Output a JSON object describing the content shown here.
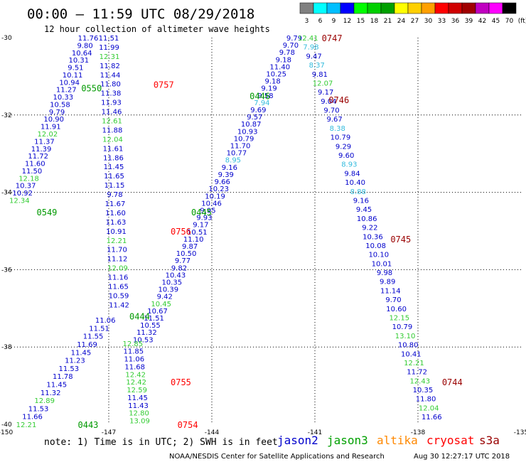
{
  "header": {
    "title": "00:00 – 11:59 UTC 08/29/2018",
    "subtitle": "12 hour collection of altimeter wave heights"
  },
  "color_scale": {
    "labels": [
      "3",
      "6",
      "9",
      "12",
      "15",
      "18",
      "21",
      "24",
      "27",
      "30",
      "33",
      "36",
      "39",
      "42",
      "45",
      "70",
      "(ft)"
    ],
    "colors": [
      "#808080",
      "#00ffff",
      "#00bfff",
      "#0000ff",
      "#00ff00",
      "#00d000",
      "#00a000",
      "#ffff00",
      "#ffd000",
      "#ffa000",
      "#ff0000",
      "#d00000",
      "#a00000",
      "#c000c0",
      "#ff00ff",
      "#000000"
    ]
  },
  "footer": {
    "note": "note: 1) Time is in UTC; 2) SWH is in feet",
    "satellites": [
      {
        "name": "jason2",
        "color": "#0000cc"
      },
      {
        "name": "jason3",
        "color": "#00a000"
      },
      {
        "name": "altika",
        "color": "#ff8800"
      },
      {
        "name": "cryosat",
        "color": "#ff0000"
      },
      {
        "name": "s3a",
        "color": "#990000"
      }
    ],
    "credit": "NOAA/NESDIS Center for Satellite Applications and Research",
    "timestamp": "Aug 30 12:27:17 UTC 2018"
  },
  "chart_data": {
    "type": "scatter",
    "x_ticks": [
      "-150",
      "-147",
      "-144",
      "-141",
      "-138",
      "-135"
    ],
    "y_ticks": [
      "-30",
      "-32",
      "-34",
      "-36",
      "-38",
      "-40"
    ],
    "xlim": [
      -150,
      -135
    ],
    "ylim": [
      -40,
      -30
    ],
    "grid": true,
    "value_colors": {
      "high": "#0000cc",
      "mid": "#33bbdd",
      "jason3": "#33cc33"
    },
    "tracks": [
      {
        "id": "track-a",
        "start": [
          -147.6,
          -30.0
        ],
        "end": [
          -149.6,
          -34.2
        ],
        "values": [
          "11.76",
          "9.80",
          "10.64",
          "10.31",
          "9.51",
          "10.11",
          "10.94",
          "11.27",
          "10.33",
          "10.58",
          "9.79",
          "10.90",
          "11.91",
          "12.02",
          "11.37",
          "11.39",
          "11.72",
          "11.60",
          "11.50",
          "12.18",
          "10.37",
          "10.92",
          "12.34"
        ],
        "colors": [
          "b",
          "b",
          "b",
          "b",
          "b",
          "b",
          "b",
          "b",
          "b",
          "b",
          "b",
          "b",
          "b",
          "g",
          "b",
          "b",
          "b",
          "b",
          "b",
          "g",
          "b",
          "b",
          "g"
        ],
        "time_labels": [
          {
            "text": "0550",
            "lat": -31.3,
            "lon": -147.8,
            "color": "#009900"
          },
          {
            "text": "0549",
            "lat": -34.5,
            "lon": -149.1,
            "color": "#009900"
          }
        ]
      },
      {
        "id": "track-b",
        "start": [
          -147.0,
          -30.0
        ],
        "end": [
          -146.7,
          -36.9
        ],
        "values": [
          "11.51",
          "11.99",
          "12.31",
          "11.82",
          "11.44",
          "11.80",
          "11.38",
          "11.93",
          "11.46",
          "12.61",
          "11.88",
          "12.04",
          "11.61",
          "11.86",
          "11.45",
          "11.65",
          "11.15",
          "9.78",
          "11.67",
          "11.60",
          "11.63",
          "10.91",
          "12.21",
          "11.70",
          "11.12",
          "12.09",
          "11.16",
          "11.65",
          "10.59",
          "11.42"
        ],
        "colors": [
          "b",
          "b",
          "g",
          "b",
          "b",
          "b",
          "b",
          "b",
          "b",
          "g",
          "b",
          "g",
          "b",
          "b",
          "b",
          "b",
          "b",
          "b",
          "b",
          "b",
          "b",
          "b",
          "g",
          "b",
          "b",
          "g",
          "b",
          "b",
          "b",
          "b"
        ],
        "time_labels": [
          {
            "text": "0757",
            "lat": -31.2,
            "lon": -145.7,
            "color": "#ff0000"
          },
          {
            "text": "0756",
            "lat": -35.0,
            "lon": -145.2,
            "color": "#ff0000"
          }
        ]
      },
      {
        "id": "track-c",
        "start": [
          -141.6,
          -30.0
        ],
        "end": [
          -146.0,
          -37.8
        ],
        "values": [
          "9.79",
          "9.70",
          "9.78",
          "9.18",
          "11.40",
          "10.25",
          "9.18",
          "9.19",
          "9.58",
          "7.94",
          "9.69",
          "9.57",
          "10.87",
          "10.93",
          "10.79",
          "11.70",
          "10.77",
          "8.95",
          "9.16",
          "9.39",
          "9.66",
          "10.23",
          "10.19",
          "10.46",
          "9.95",
          "9.93",
          "9.17",
          "10.51",
          "11.10",
          "9.87",
          "10.50",
          "9.77",
          "9.82",
          "10.43",
          "10.35",
          "10.39",
          "9.42",
          "10.45",
          "10.67",
          "11.51",
          "10.55",
          "11.32",
          "10.53"
        ],
        "colors": [
          "b",
          "b",
          "b",
          "b",
          "b",
          "b",
          "b",
          "b",
          "b",
          "c",
          "b",
          "b",
          "b",
          "b",
          "b",
          "b",
          "b",
          "c",
          "b",
          "b",
          "b",
          "b",
          "b",
          "b",
          "b",
          "b",
          "b",
          "b",
          "b",
          "b",
          "b",
          "b",
          "b",
          "b",
          "b",
          "b",
          "b",
          "g",
          "b",
          "b",
          "b",
          "b",
          "b"
        ],
        "time_labels": [
          {
            "text": "0446",
            "lat": -31.5,
            "lon": -142.9,
            "color": "#009900"
          },
          {
            "text": "0445",
            "lat": -34.5,
            "lon": -144.6,
            "color": "#009900"
          },
          {
            "text": "0444",
            "lat": -37.2,
            "lon": -146.4,
            "color": "#009900"
          }
        ]
      },
      {
        "id": "track-d",
        "start": [
          -146.3,
          -37.9
        ],
        "end": [
          -146.1,
          -39.9
        ],
        "values": [
          "12.85",
          "11.85",
          "11.06",
          "11.68",
          "12.42",
          "12.42",
          "12.59",
          "11.45",
          "11.43",
          "12.80",
          "13.09"
        ],
        "colors": [
          "g",
          "b",
          "b",
          "b",
          "g",
          "g",
          "g",
          "b",
          "b",
          "g",
          "g"
        ],
        "time_labels": [
          {
            "text": "0755",
            "lat": -38.9,
            "lon": -145.2,
            "color": "#ff0000"
          },
          {
            "text": "0754",
            "lat": -40.0,
            "lon": -145.0,
            "color": "#ff0000"
          }
        ]
      },
      {
        "id": "track-e",
        "start": [
          -147.1,
          -37.3
        ],
        "end": [
          -149.4,
          -40.0
        ],
        "values": [
          "11.06",
          "11.51",
          "11.55",
          "11.69",
          "11.45",
          "11.23",
          "11.53",
          "11.78",
          "11.45",
          "11.32",
          "12.89",
          "11.53",
          "11.66",
          "12.21"
        ],
        "colors": [
          "b",
          "b",
          "b",
          "b",
          "b",
          "b",
          "b",
          "b",
          "b",
          "b",
          "g",
          "b",
          "b",
          "g"
        ],
        "time_labels": [
          {
            "text": "0443",
            "lat": -40.0,
            "lon": -147.9,
            "color": "#009900"
          }
        ]
      },
      {
        "id": "track-f",
        "start": [
          -141.2,
          -30.0
        ],
        "end": [
          -137.6,
          -39.8
        ],
        "values": [
          "12.41",
          "7.98",
          "9.47",
          "8.37",
          "9.81",
          "12.07",
          "9.17",
          "9.04",
          "9.70",
          "9.67",
          "8.38",
          "10.79",
          "9.29",
          "9.60",
          "8.93",
          "9.84",
          "10.40",
          "8.88",
          "9.16",
          "9.45",
          "10.86",
          "9.22",
          "10.36",
          "10.08",
          "10.10",
          "10.01",
          "9.98",
          "9.89",
          "11.14",
          "9.70",
          "10.60",
          "12.15",
          "10.79",
          "13.10",
          "10.80",
          "10.41",
          "12.21",
          "11.72",
          "12.43",
          "10.35",
          "11.80",
          "12.04",
          "11.66"
        ],
        "colors": [
          "g",
          "c",
          "b",
          "c",
          "b",
          "g",
          "b",
          "b",
          "b",
          "b",
          "c",
          "b",
          "b",
          "b",
          "c",
          "b",
          "b",
          "c",
          "b",
          "b",
          "b",
          "b",
          "b",
          "b",
          "b",
          "b",
          "b",
          "b",
          "b",
          "b",
          "b",
          "g",
          "b",
          "g",
          "b",
          "b",
          "g",
          "b",
          "g",
          "b",
          "b",
          "g",
          "b"
        ],
        "time_labels": [
          {
            "text": "0747",
            "lat": -30.0,
            "lon": -140.8,
            "color": "#990000"
          },
          {
            "text": "0746",
            "lat": -31.6,
            "lon": -140.6,
            "color": "#990000"
          },
          {
            "text": "0745",
            "lat": -35.2,
            "lon": -138.8,
            "color": "#990000"
          },
          {
            "text": "0744",
            "lat": -38.9,
            "lon": -137.3,
            "color": "#990000"
          }
        ]
      }
    ]
  }
}
